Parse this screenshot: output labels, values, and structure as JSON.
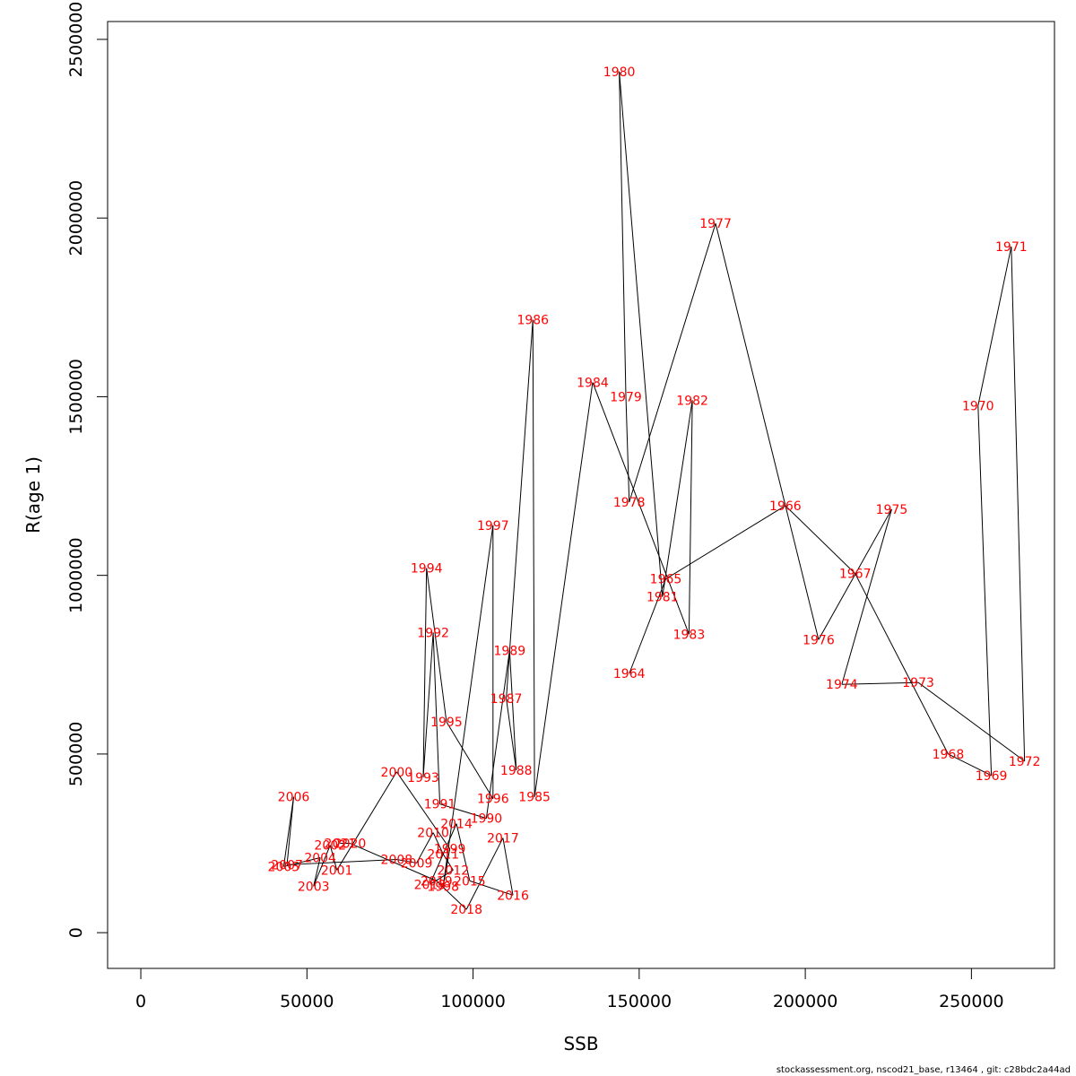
{
  "chart_data": {
    "type": "line",
    "title": "",
    "xlabel": "SSB",
    "ylabel": "R(age 1)",
    "xlim": [
      -10000,
      275000
    ],
    "ylim": [
      -100000,
      2550000
    ],
    "xticks": [
      0,
      50000,
      100000,
      150000,
      200000,
      250000
    ],
    "yticks": [
      0,
      500000,
      1000000,
      1500000,
      2000000,
      2500000
    ],
    "grid": false,
    "series": [
      {
        "line_color": "#000000",
        "label_color": "#ff0000",
        "points": [
          {
            "label": "1964",
            "x": 147000,
            "y": 725000
          },
          {
            "label": "1965",
            "x": 158000,
            "y": 990000
          },
          {
            "label": "1966",
            "x": 194000,
            "y": 1195000
          },
          {
            "label": "1967",
            "x": 215000,
            "y": 1005000
          },
          {
            "label": "1968",
            "x": 243000,
            "y": 500000
          },
          {
            "label": "1969",
            "x": 256000,
            "y": 440000
          },
          {
            "label": "1970",
            "x": 252000,
            "y": 1475000
          },
          {
            "label": "1971",
            "x": 262000,
            "y": 1920000
          },
          {
            "label": "1972",
            "x": 266000,
            "y": 480000
          },
          {
            "label": "1973",
            "x": 234000,
            "y": 700000
          },
          {
            "label": "1974",
            "x": 211000,
            "y": 695000
          },
          {
            "label": "1975",
            "x": 226000,
            "y": 1185000
          },
          {
            "label": "1976",
            "x": 204000,
            "y": 820000
          },
          {
            "label": "1977",
            "x": 173000,
            "y": 1985000
          },
          {
            "label": "1978",
            "x": 147000,
            "y": 1205000
          },
          {
            "label": "1979",
            "x": 146000,
            "y": 1500000
          },
          {
            "label": "1980",
            "x": 144000,
            "y": 2410000
          },
          {
            "label": "1981",
            "x": 157000,
            "y": 940000
          },
          {
            "label": "1982",
            "x": 166000,
            "y": 1490000
          },
          {
            "label": "1983",
            "x": 165000,
            "y": 835000
          },
          {
            "label": "1984",
            "x": 136000,
            "y": 1540000
          },
          {
            "label": "1985",
            "x": 118500,
            "y": 380000
          },
          {
            "label": "1986",
            "x": 118000,
            "y": 1715000
          },
          {
            "label": "1987",
            "x": 110000,
            "y": 655000
          },
          {
            "label": "1988",
            "x": 113000,
            "y": 455000
          },
          {
            "label": "1989",
            "x": 111000,
            "y": 790000
          },
          {
            "label": "1990",
            "x": 104000,
            "y": 320000
          },
          {
            "label": "1991",
            "x": 90000,
            "y": 360000
          },
          {
            "label": "1992",
            "x": 88000,
            "y": 840000
          },
          {
            "label": "1993",
            "x": 85000,
            "y": 435000
          },
          {
            "label": "1994",
            "x": 86000,
            "y": 1020000
          },
          {
            "label": "1995",
            "x": 92000,
            "y": 590000
          },
          {
            "label": "1996",
            "x": 106000,
            "y": 375000
          },
          {
            "label": "1997",
            "x": 106000,
            "y": 1140000
          },
          {
            "label": "1998",
            "x": 91000,
            "y": 130000
          },
          {
            "label": "1999",
            "x": 93000,
            "y": 235000
          },
          {
            "label": "2000",
            "x": 77000,
            "y": 450000
          },
          {
            "label": "2001",
            "x": 59000,
            "y": 175000
          },
          {
            "label": "2002",
            "x": 57000,
            "y": 245000
          },
          {
            "label": "2003",
            "x": 52000,
            "y": 130000
          },
          {
            "label": "2004",
            "x": 54000,
            "y": 210000
          },
          {
            "label": "2005",
            "x": 43000,
            "y": 185000
          },
          {
            "label": "2006",
            "x": 46000,
            "y": 380000
          },
          {
            "label": "2007",
            "x": 44000,
            "y": 190000
          },
          {
            "label": "2008",
            "x": 77000,
            "y": 205000
          },
          {
            "label": "2009",
            "x": 83000,
            "y": 195000
          },
          {
            "label": "2010",
            "x": 88000,
            "y": 280000
          },
          {
            "label": "2011",
            "x": 91000,
            "y": 220000
          },
          {
            "label": "2012",
            "x": 94000,
            "y": 175000
          },
          {
            "label": "2013",
            "x": 87000,
            "y": 135000
          },
          {
            "label": "2014",
            "x": 95000,
            "y": 305000
          },
          {
            "label": "2015",
            "x": 99000,
            "y": 145000
          },
          {
            "label": "2016",
            "x": 112000,
            "y": 105000
          },
          {
            "label": "2017",
            "x": 109000,
            "y": 265000
          },
          {
            "label": "2018",
            "x": 98000,
            "y": 65000
          },
          {
            "label": "2019",
            "x": 89000,
            "y": 145000
          },
          {
            "label": "2020",
            "x": 63000,
            "y": 250000
          },
          {
            "label": "2021",
            "x": 60000,
            "y": 250000
          }
        ]
      }
    ]
  },
  "footer": "stockassessment.org, nscod21_base, r13464 , git: c28bdc2a44ad"
}
